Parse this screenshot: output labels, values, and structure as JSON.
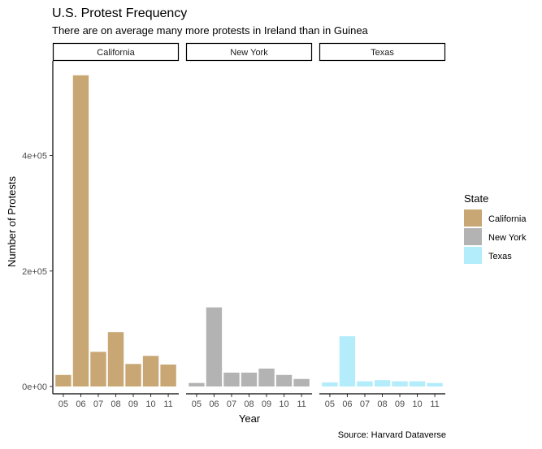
{
  "chart_data": {
    "type": "bar",
    "title": "U.S. Protest Frequency",
    "subtitle": "There are on average many more protests in Ireland than in Guinea",
    "xlabel": "Year",
    "ylabel": "Number of Protests",
    "caption": "Source: Harvard Dataverse",
    "categories": [
      "05",
      "06",
      "07",
      "08",
      "09",
      "10",
      "11"
    ],
    "y_ticks": [
      0,
      200000,
      400000
    ],
    "y_tick_labels": [
      "0e+00",
      "2e+05",
      "4e+05"
    ],
    "ylim": [
      0,
      540000
    ],
    "grid": false,
    "legend_position": "right",
    "legend": {
      "title": "State"
    },
    "facets": [
      {
        "name": "California",
        "color": "#c8a774",
        "values": [
          20000,
          539000,
          60000,
          94000,
          39000,
          53000,
          38000
        ]
      },
      {
        "name": "New York",
        "color": "#b3b3b3",
        "values": [
          6000,
          137000,
          24000,
          24000,
          31000,
          20000,
          13000
        ]
      },
      {
        "name": "Texas",
        "color": "#b3ecfa",
        "values": [
          7000,
          87000,
          9000,
          11000,
          9000,
          9000,
          6000
        ]
      }
    ]
  }
}
